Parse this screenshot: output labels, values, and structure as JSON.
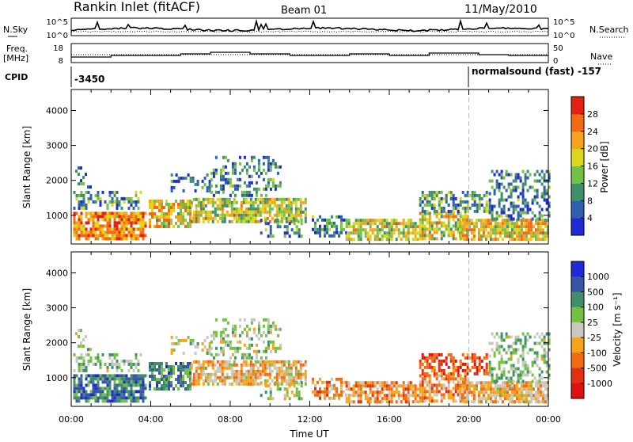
{
  "header": {
    "title": "Rankin Inlet (fitACF)",
    "beam": "Beam 01",
    "date": "11/May/2010"
  },
  "strip_noise": {
    "left_label": "N.Sky",
    "right_label": "N.Search",
    "left_ticks": [
      "10^5",
      "10^0"
    ],
    "right_ticks": [
      "10^5",
      "10^0"
    ]
  },
  "strip_freq": {
    "left_label_1": "Freq.",
    "left_label_2": "[MHz]",
    "right_label": "Nave",
    "left_ticks": [
      "18",
      "8"
    ],
    "right_ticks": [
      "50",
      "0"
    ]
  },
  "cpid": {
    "label": "CPID",
    "first_value": "-3450",
    "second_value": "normalsound (fast) -157"
  },
  "colors": {
    "power_scale": [
      "#1e2bd6",
      "#2f5fb0",
      "#3f8f6a",
      "#74c044",
      "#dcd61c",
      "#f4a41c",
      "#f26b14",
      "#e32012"
    ],
    "velocity_scale": [
      "#1e2bd6",
      "#3a55a8",
      "#3f8f6a",
      "#74c044",
      "#c8c8c0",
      "#f4a41c",
      "#f26b14",
      "#e33010",
      "#e01010"
    ]
  },
  "chart_data": [
    {
      "type": "heatmap",
      "name": "Power",
      "xlabel": "",
      "ylabel": "Slant Range [km]",
      "x_tick_labels": [
        "00:00",
        "04:00",
        "08:00",
        "12:00",
        "16:00",
        "20:00",
        "00:00"
      ],
      "x_range_hours": [
        0,
        24
      ],
      "y_ticks": [
        1000,
        2000,
        3000,
        4000
      ],
      "ylim": [
        180,
        4600
      ],
      "colorbar_label": "Power [dB]",
      "colorbar_ticks": [
        4,
        8,
        12,
        16,
        20,
        24,
        28
      ],
      "colorbar_range": [
        0,
        32
      ],
      "dashed_marker_hour": 20.0
    },
    {
      "type": "heatmap",
      "name": "Velocity",
      "xlabel": "Time UT",
      "ylabel": "Slant Range [km]",
      "x_tick_labels": [
        "00:00",
        "04:00",
        "08:00",
        "12:00",
        "16:00",
        "20:00",
        "00:00"
      ],
      "x_range_hours": [
        0,
        24
      ],
      "y_ticks": [
        1000,
        2000,
        3000,
        4000
      ],
      "ylim": [
        180,
        4600
      ],
      "colorbar_label": "Velocity [m s⁻¹]",
      "colorbar_ticks": [
        "1000",
        "500",
        "100",
        "25",
        "-25",
        "-100",
        "-500",
        "-1000"
      ],
      "dashed_marker_hour": 20.0
    }
  ]
}
